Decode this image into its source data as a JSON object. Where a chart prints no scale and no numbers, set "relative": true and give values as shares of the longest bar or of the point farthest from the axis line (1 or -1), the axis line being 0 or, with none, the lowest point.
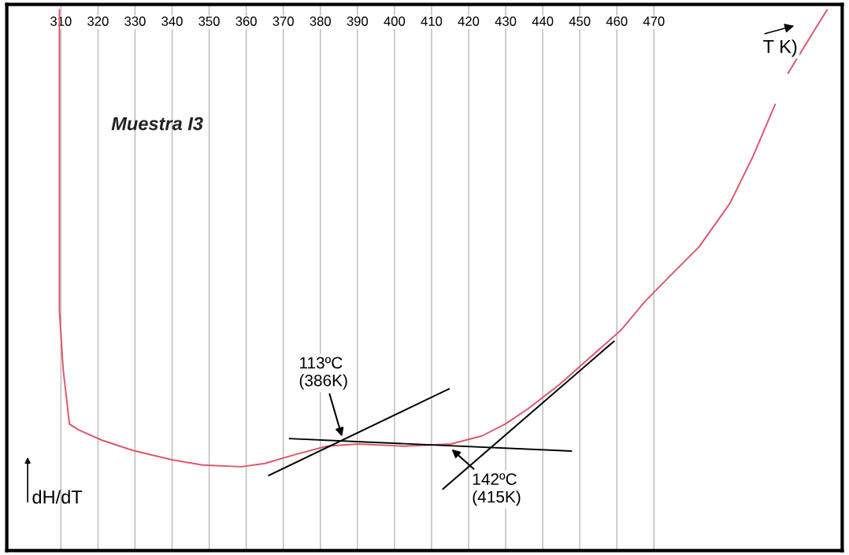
{
  "chart_data": {
    "type": "line",
    "title": "Muestra I3",
    "xlabel": "T K)",
    "ylabel": "dH/dT",
    "relative": true,
    "xlim": [
      295.4,
      520.8
    ],
    "xticks": [
      310,
      320,
      330,
      340,
      350,
      360,
      370,
      380,
      390,
      400,
      410,
      420,
      430,
      440,
      450,
      460,
      470
    ],
    "grid": "x",
    "legend": false,
    "marker": "none",
    "line_style": "solid",
    "series": [
      {
        "color": "#d9576e",
        "x": [
          309.6,
          309.6,
          310.6,
          312.3,
          314.8,
          321.1,
          329.5,
          339.9,
          348.3,
          358.7,
          365.0,
          373.4,
          381.8,
          390.1,
          402.7,
          415.2,
          423.6,
          429.9,
          436.2,
          444.5,
          452.9,
          461.3,
          467.5,
          473.8,
          482.2,
          490.5,
          496.8,
          502.7,
          504.5,
          506.2,
          511.5,
          516.7
        ],
        "values": [
          1.0,
          0.445,
          0.336,
          0.234,
          0.223,
          0.204,
          0.185,
          0.168,
          0.158,
          0.155,
          0.161,
          0.178,
          0.193,
          0.197,
          0.193,
          0.197,
          0.212,
          0.234,
          0.263,
          0.307,
          0.358,
          0.409,
          0.46,
          0.504,
          0.562,
          0.642,
          0.73,
          0.825,
          null,
          0.883,
          0.942,
          1.0
        ]
      },
      {
        "color": "#000000",
        "x": [
          366.1,
          414.7
        ],
        "values": [
          0.139,
          0.299
        ]
      },
      {
        "color": "#000000",
        "x": [
          371.7,
          447.7
        ],
        "values": [
          0.207,
          0.184
        ]
      },
      {
        "color": "#000000",
        "x": [
          413.1,
          459.2
        ],
        "values": [
          0.114,
          0.387
        ]
      }
    ],
    "annotations": [
      {
        "text": "113ºC\n(386K)",
        "x": 386,
        "y": 0.207
      },
      {
        "text": "142ºC\n(415K)",
        "x": 415,
        "y": 0.19
      }
    ]
  }
}
